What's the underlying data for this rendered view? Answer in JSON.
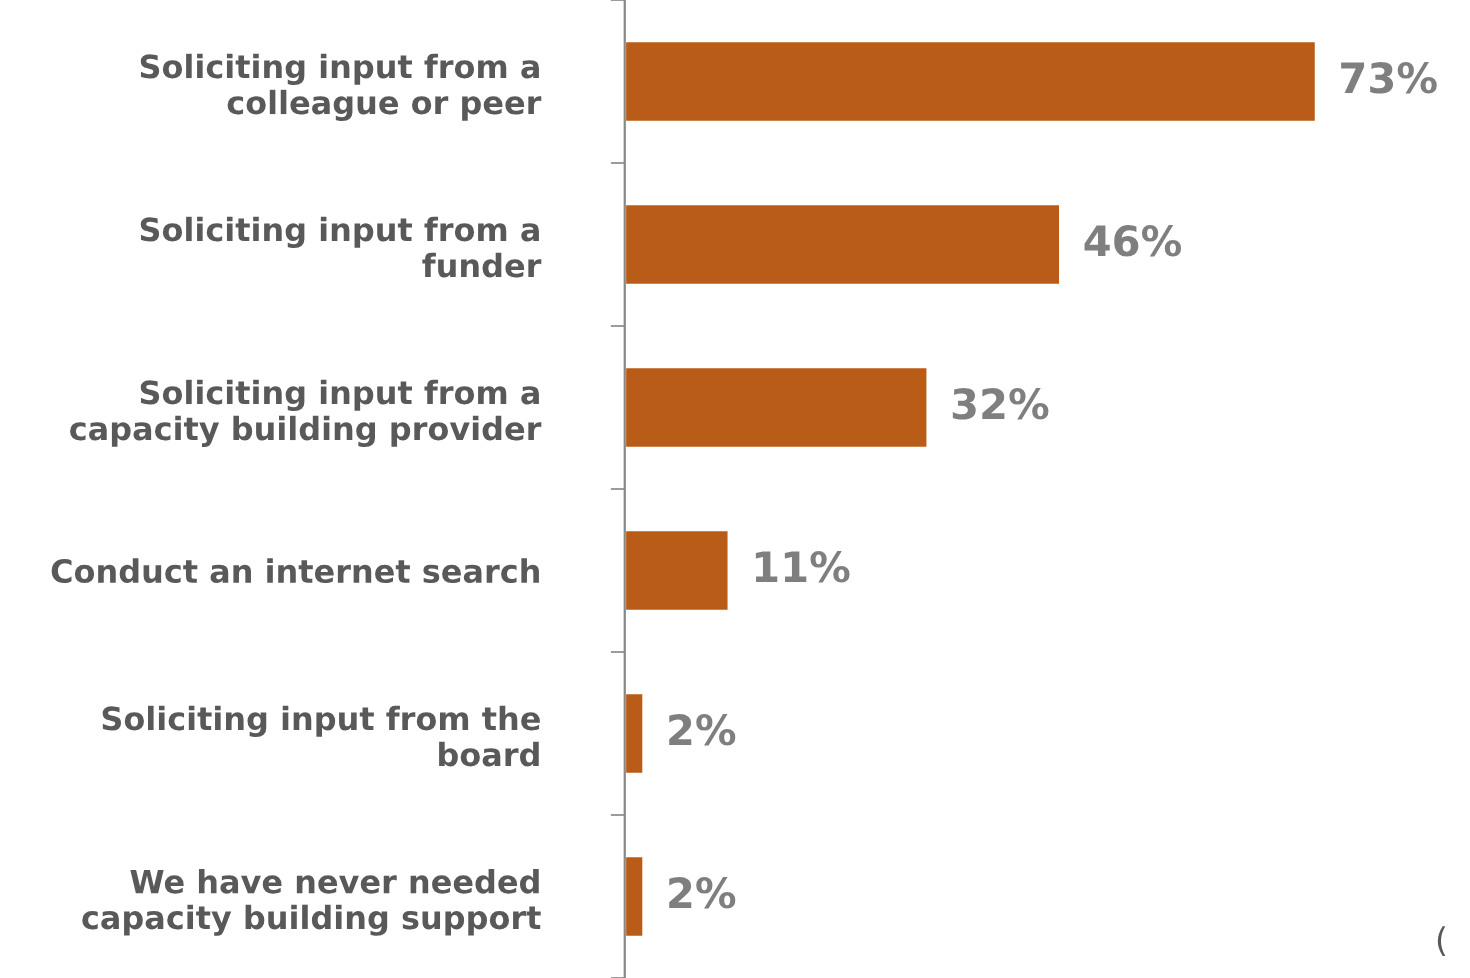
{
  "chart_data": {
    "type": "bar",
    "orientation": "horizontal",
    "categories": [
      "Soliciting input from a\ncolleague or peer",
      "Soliciting input from a\nfunder",
      "Soliciting input from a\ncapacity building provider",
      "Conduct an internet search",
      "Soliciting input from the\nboard",
      "We have never needed\ncapacity building support"
    ],
    "values": [
      73,
      46,
      32,
      11,
      2,
      2
    ],
    "value_labels": [
      "73%",
      "46%",
      "32%",
      "11%",
      "2%",
      "2%"
    ],
    "color": "#b85c17",
    "annotations": [
      "("
    ]
  }
}
